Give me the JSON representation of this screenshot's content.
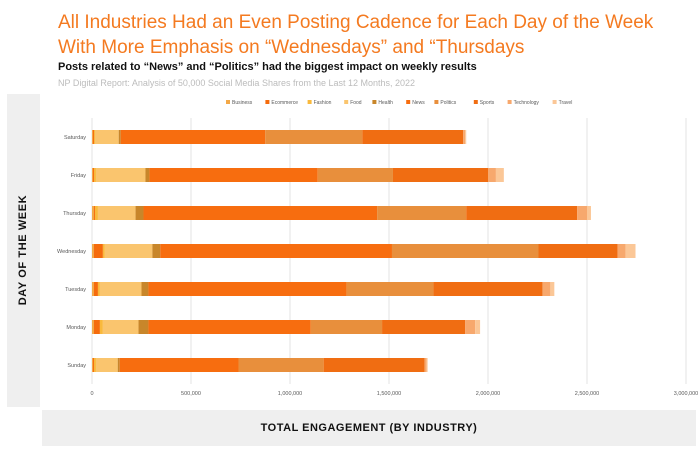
{
  "header": {
    "title": "All Industries Had an Even Posting Cadence for Each Day of the Week With More Emphasis on “Wednesdays” and “Thursdays",
    "subtitle": "Posts related to “News” and “Politics” had the biggest impact on weekly results",
    "source": "NP Digital Report: Analysis of 50,000 Social Media Shares from the Last 12 Months, 2022"
  },
  "colors": {
    "title": "#f47a20",
    "Business": "#f3a847",
    "Ecommerce": "#f56b0c",
    "Fashion": "#f9b93c",
    "Food": "#fac56e",
    "Health": "#c8862a",
    "News": "#f76d0f",
    "Politics": "#e88f3c",
    "Sports": "#f06d12",
    "Technology": "#f7a86d",
    "Travel": "#fbc797"
  },
  "chart_data": {
    "type": "bar",
    "orientation": "horizontal",
    "stacked": true,
    "xlabel": "TOTAL ENGAGEMENT (BY INDUSTRY)",
    "ylabel": "DAY OF THE WEEK",
    "xlim": [
      0,
      3000000
    ],
    "xticks": [
      0,
      500000,
      1000000,
      1500000,
      2000000,
      2500000,
      3000000
    ],
    "xtick_labels": [
      "0",
      "500,000",
      "1,000,000",
      "1,500,000",
      "2,000,000",
      "2,500,000",
      "3,000,000"
    ],
    "grid": "vertical",
    "legend_position": "top",
    "categories": [
      "Saturday",
      "Friday",
      "Thursday",
      "Wednesday",
      "Tuesday",
      "Monday",
      "Sunday"
    ],
    "series": [
      {
        "name": "Business",
        "values": [
          5000,
          5000,
          10000,
          10000,
          10000,
          10000,
          5000
        ]
      },
      {
        "name": "Ecommerce",
        "values": [
          5000,
          5000,
          5000,
          45000,
          20000,
          30000,
          5000
        ]
      },
      {
        "name": "Fashion",
        "values": [
          5000,
          10000,
          15000,
          10000,
          10000,
          15000,
          10000
        ]
      },
      {
        "name": "Food",
        "values": [
          120000,
          250000,
          190000,
          240000,
          210000,
          180000,
          110000
        ]
      },
      {
        "name": "Health",
        "values": [
          10000,
          20000,
          40000,
          40000,
          35000,
          50000,
          10000
        ]
      },
      {
        "name": "News",
        "values": [
          730000,
          850000,
          1180000,
          1170000,
          1000000,
          820000,
          600000
        ]
      },
      {
        "name": "Politics",
        "values": [
          490000,
          380000,
          450000,
          740000,
          440000,
          360000,
          430000
        ]
      },
      {
        "name": "Sports",
        "values": [
          510000,
          480000,
          560000,
          400000,
          550000,
          420000,
          510000
        ]
      },
      {
        "name": "Technology",
        "values": [
          10000,
          40000,
          50000,
          40000,
          40000,
          50000,
          10000
        ]
      },
      {
        "name": "Travel",
        "values": [
          5000,
          40000,
          20000,
          50000,
          20000,
          25000,
          5000
        ]
      }
    ]
  }
}
